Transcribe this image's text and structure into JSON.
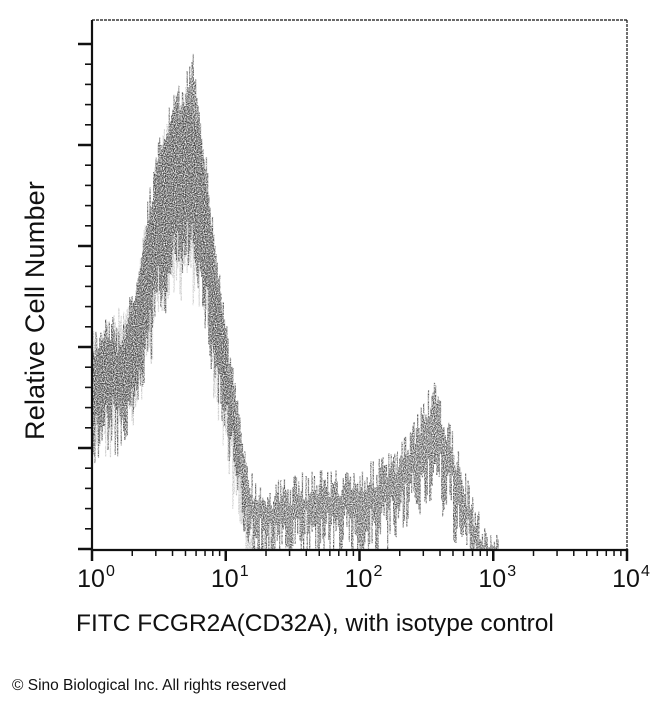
{
  "chart_data": {
    "type": "area",
    "title": "",
    "xlabel": "FITC FCGR2A(CD32A), with isotype control",
    "ylabel": "Relative Cell Number",
    "x_scale": "log",
    "xlim": [
      1,
      10000
    ],
    "x_ticks": [
      {
        "base": "10",
        "exp": "0"
      },
      {
        "base": "10",
        "exp": "1"
      },
      {
        "base": "10",
        "exp": "2"
      },
      {
        "base": "10",
        "exp": "3"
      },
      {
        "base": "10",
        "exp": "4"
      }
    ],
    "y_tick_labels": [],
    "ylim": [
      0,
      5.2
    ],
    "grid": false,
    "legend": null,
    "series": [
      {
        "name": "FCGR2A(CD32A)",
        "color": "#1a1a1a",
        "log10_x": [
          0.0,
          0.1,
          0.2,
          0.3,
          0.4,
          0.5,
          0.6,
          0.7,
          0.75,
          0.8,
          0.9,
          1.0,
          1.1,
          1.2,
          1.3,
          1.5,
          1.7,
          1.9,
          2.1,
          2.3,
          2.45,
          2.55,
          2.65,
          2.75,
          2.85,
          2.95,
          3.05,
          3.5,
          4.0
        ],
        "values": [
          2.0,
          2.25,
          2.05,
          2.45,
          3.25,
          3.95,
          4.35,
          4.55,
          4.85,
          4.35,
          3.15,
          2.15,
          1.2,
          0.58,
          0.53,
          0.58,
          0.68,
          0.63,
          0.73,
          0.88,
          1.28,
          1.52,
          1.18,
          0.78,
          0.34,
          0.09,
          0.0,
          0.0,
          0.0
        ]
      },
      {
        "name": "Isotype control",
        "color": "#8a8a8a",
        "log10_x": [
          0.0,
          0.3,
          0.5,
          0.7,
          0.8,
          0.9,
          1.0,
          1.1,
          1.15,
          1.2,
          1.3,
          4.0
        ],
        "values": [
          2.0,
          2.4,
          3.9,
          4.5,
          4.2,
          3.0,
          2.0,
          0.9,
          0.35,
          0.05,
          0.0,
          0.0
        ]
      }
    ]
  },
  "labels": {
    "ylabel": "Relative Cell Number",
    "xlabel": "FITC FCGR2A(CD32A), with isotype control",
    "copyright": "© Sino Biological Inc. All rights reserved",
    "xticks": [
      {
        "base": "10",
        "exp": "0"
      },
      {
        "base": "10",
        "exp": "1"
      },
      {
        "base": "10",
        "exp": "2"
      },
      {
        "base": "10",
        "exp": "3"
      },
      {
        "base": "10",
        "exp": "4"
      }
    ]
  }
}
